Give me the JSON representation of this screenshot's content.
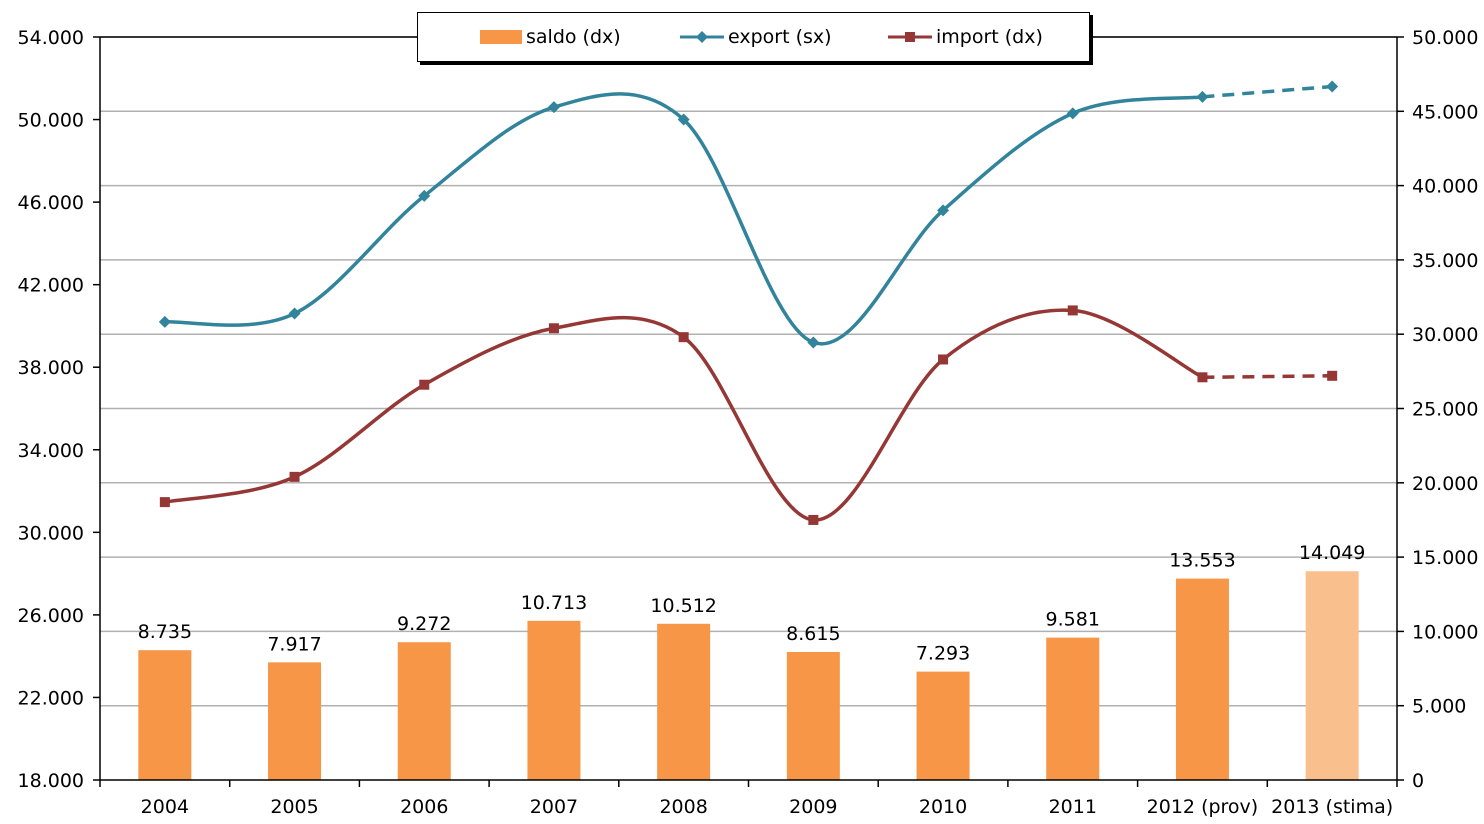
{
  "chart_data": {
    "type": "bar+line",
    "categories": [
      "2004",
      "2005",
      "2006",
      "2007",
      "2008",
      "2009",
      "2010",
      "2011",
      "2012 (prov)",
      "2013 (stima)"
    ],
    "left_axis": {
      "ylim": [
        18000,
        54000
      ],
      "ticks": [
        "18.000",
        "22.000",
        "26.000",
        "30.000",
        "34.000",
        "38.000",
        "42.000",
        "46.000",
        "50.000",
        "54.000"
      ]
    },
    "right_axis": {
      "ylim": [
        0,
        50000
      ],
      "ticks": [
        "0",
        "5.000",
        "10.000",
        "15.000",
        "20.000",
        "25.000",
        "30.000",
        "35.000",
        "40.000",
        "45.000",
        "50.000"
      ]
    },
    "grid": true,
    "legend_position": "top-center",
    "series": [
      {
        "name": "saldo (dx)",
        "kind": "bar",
        "axis": "right",
        "values": [
          8735,
          7917,
          9272,
          10713,
          10512,
          8615,
          7293,
          9581,
          13553,
          14049
        ],
        "labels": [
          "8.735",
          "7.917",
          "9.272",
          "10.713",
          "10.512",
          "8.615",
          "7.293",
          "9.581",
          "13.553",
          "14.049"
        ],
        "color": "#F79646",
        "last_color": "#F9C08E"
      },
      {
        "name": "export (sx)",
        "kind": "line",
        "axis": "left",
        "values": [
          40200,
          40600,
          46300,
          50600,
          50000,
          39200,
          45600,
          50300,
          51100,
          51600
        ],
        "color": "#31849B",
        "dashed_from_index": 8
      },
      {
        "name": "import (dx)",
        "kind": "line",
        "axis": "right",
        "values": [
          18700,
          20400,
          26600,
          30400,
          29800,
          17500,
          28300,
          31600,
          27100,
          27200
        ],
        "color": "#953735",
        "dashed_from_index": 8
      }
    ]
  }
}
